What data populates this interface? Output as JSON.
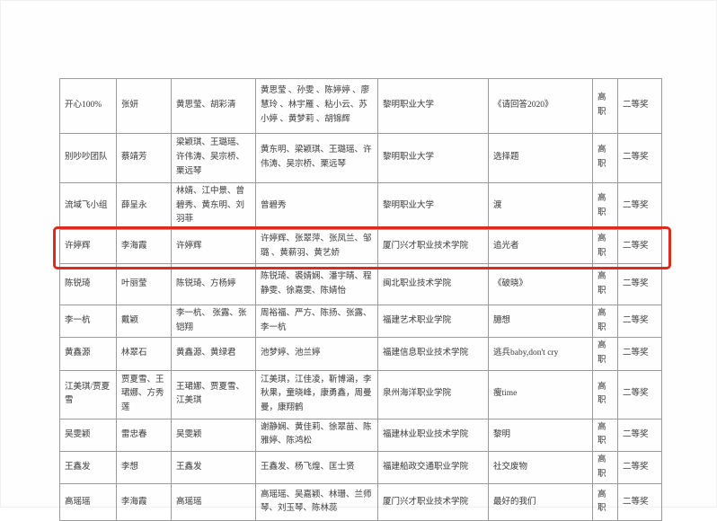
{
  "document": {
    "kind": "award-results-table",
    "level_label": "高职",
    "award_label": "二等奖",
    "highlight_color": "#dd2b20"
  },
  "table": {
    "highlight": {
      "row_index": 4,
      "color": "#dd2b20"
    },
    "rows": [
      [
        "开心100%",
        "张妍",
        "黄思莹、胡彩清",
        "黄思莹 、孙雯 、陈婷婷 、廖慧玲 、林宇雁 、粘小云、苏小婷 、黄梦莉 、胡锦辉",
        "黎明职业大学",
        "《请回答2020》",
        "高职",
        "二等奖"
      ],
      [
        "别吵吵团队",
        "蔡靖芳",
        "梁颖琪、王璐瑶、许伟涛、吴宗桥、栗远琴",
        "黄东明、梁颖琪、王璐瑶、许伟涛、吴宗桥、栗远琴",
        "黎明职业大学",
        "选择题",
        "高职",
        "二等奖"
      ],
      [
        "流域飞小组",
        "薛呈永",
        "林婧、江中景、曾碧秀、黄东明、刘羽菲",
        "曾碧秀",
        "黎明职业大学",
        "渡",
        "高职",
        "二等奖"
      ],
      [
        "许婷辉",
        "李海霞",
        "许婷辉",
        "许婷辉、张翠萍、张凤兰、邹璐 、黄薪羽、黄艺娇",
        "厦门兴才职业技术学院",
        "追光者",
        "高职",
        "二等奖"
      ],
      [
        "陈锐琦",
        "叶丽莹",
        "陈锐琦、方杨婷",
        "陈锐琦、裘婧娴、潘宇晴、程静雯、徐嘉雯、陈婧怡",
        "闽北职业技术学院",
        "《破晓》",
        "高职",
        "二等奖"
      ],
      [
        "李一杭",
        "戴颖",
        "李一杭、 张露、张铠翔",
        "周裕福、严方、陈扬、张露、李一杭",
        "福建艺术职业学院",
        "臆想",
        "高职",
        "二等奖"
      ],
      [
        "黄鑫源",
        "林翠石",
        "黄鑫源、黄绿君",
        "池梦婷、池兰婷",
        "福建信息职业技术学院",
        "逃兵baby,don't cry",
        "高职",
        "二等奖"
      ],
      [
        "江美琪/贾夏雪",
        "贾夏雪、王珺娜、方秀莲",
        "王珺娜、贾夏雪、江美琪",
        "江美琪，江佳凌，靳博涵，李秋果，童晓峰，康勇鑫，周曼曼，康翔鹤",
        "泉州海洋职业学院",
        "瘦time",
        "高职",
        "二等奖"
      ],
      [
        "吴雯颖",
        "雷忠春",
        "吴雯颖",
        "谢静娴、黄佳莉、徐翠苗、陈雅婷、陈鸿松",
        "福建林业职业技术学院",
        "黎明",
        "高职",
        "二等奖"
      ],
      [
        "王鑫发",
        "李想",
        "王鑫发",
        "王鑫发、杨飞煌、匡士贤",
        "福建船政交通职业学院",
        "社交废物",
        "高职",
        "二等奖"
      ],
      [
        "高瑶瑶",
        "李海霞",
        "高瑶瑶",
        "高瑶瑶、吴嘉颖、林珊、兰师琴、刘玉琴、陈林蕊",
        "厦门兴才职业技术学院",
        "最好的我们",
        "高职",
        "二等奖"
      ]
    ]
  }
}
